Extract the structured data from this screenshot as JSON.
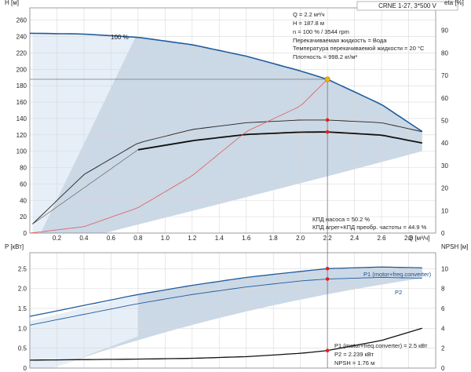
{
  "chart_data": [
    {
      "type": "line",
      "title": "CRNE 1-27, 3*500 V",
      "xlabel": "Q [м³/ч]",
      "ylabel_left": "H [м]",
      "ylabel_right": "eta [%]",
      "xticks": [
        "0",
        "0.2",
        "0.4",
        "0.6",
        "0.8",
        "1.0",
        "1.2",
        "1.4",
        "1.6",
        "1.8",
        "2.0",
        "2.2",
        "2.4",
        "2.6",
        "2.8"
      ],
      "yticks_left": [
        "0",
        "20",
        "40",
        "60",
        "80",
        "100",
        "120",
        "140",
        "160",
        "180",
        "200",
        "220",
        "240",
        "260"
      ],
      "yticks_right": [
        "0",
        "10",
        "20",
        "30",
        "40",
        "50",
        "60",
        "70",
        "80",
        "90"
      ],
      "xlim": [
        0,
        3.0
      ],
      "ylim_left": [
        0,
        275
      ],
      "ylim_right": [
        0,
        100
      ],
      "grid": true,
      "speed_label": "100 %",
      "series": [
        {
          "axis": "H",
          "x": [
            0,
            0.4,
            0.8,
            1.2,
            1.6,
            2.0,
            2.2,
            2.6,
            2.9
          ],
          "values": [
            244,
            243,
            239,
            230,
            216,
            198,
            187.8,
            157,
            124
          ]
        },
        {
          "axis": "eta",
          "x": [
            0.02,
            0.4,
            0.8,
            1.2,
            1.6,
            2.0,
            2.2,
            2.6,
            2.9
          ],
          "values": [
            4,
            26,
            40,
            46,
            49,
            50.2,
            50.2,
            49,
            45
          ]
        },
        {
          "axis": "eta",
          "x": [
            0.8,
            1.2,
            1.6,
            2.0,
            2.2,
            2.6,
            2.9
          ],
          "values": [
            37,
            41,
            43.8,
            44.8,
            44.9,
            43.5,
            40
          ]
        },
        {
          "axis": "H",
          "x": [
            0,
            0.4,
            0.8,
            1.2,
            1.6,
            2.0,
            2.2
          ],
          "values": [
            0,
            7.8,
            31,
            70,
            124,
            155,
            187.8
          ]
        }
      ],
      "duty_point": {
        "q": 2.2,
        "h": 187.8,
        "eta_pump": 50.2,
        "eta_total": 44.9
      },
      "info_lines": [
        "Q = 2.2 м³/ч",
        "H = 187.8 м",
        "n = 100 % / 3544 rpm",
        "Перекачиваемая жидкость = Вода",
        "Температура перекачиваемой жидкости = 20 °C",
        "Плотность = 998.2 кг/м³"
      ],
      "eff_lines": [
        "КПД насоса = 50.2 %",
        "КПД агрег+КПД преобр. частоты = 44.9 %"
      ]
    },
    {
      "type": "line",
      "xlabel": "",
      "ylabel_left": "P [кВт]",
      "ylabel_right": "NPSH [м]",
      "yticks_left": [
        "0",
        "0.5",
        "1.0",
        "1.5",
        "2.0",
        "2.5"
      ],
      "yticks_right": [
        "0",
        "2",
        "4",
        "6",
        "8",
        "10"
      ],
      "ylim_left": [
        0,
        2.9
      ],
      "ylim_right": [
        0,
        11.6
      ],
      "grid": true,
      "series": [
        {
          "name": "P1 (motor+freq.converter)",
          "axis": "P",
          "x": [
            0,
            0.8,
            1.2,
            1.6,
            2.0,
            2.2,
            2.6,
            2.9
          ],
          "values": [
            1.3,
            1.85,
            2.08,
            2.28,
            2.43,
            2.5,
            2.54,
            2.52
          ]
        },
        {
          "name": "P2",
          "axis": "P",
          "x": [
            0,
            0.8,
            1.2,
            1.6,
            2.0,
            2.2,
            2.6,
            2.9
          ],
          "values": [
            1.08,
            1.62,
            1.85,
            2.04,
            2.19,
            2.239,
            2.28,
            2.26
          ]
        },
        {
          "axis": "NPSH",
          "x": [
            0,
            0.8,
            1.2,
            1.6,
            2.0,
            2.2,
            2.6,
            2.9
          ],
          "values": [
            0.8,
            0.9,
            0.98,
            1.15,
            1.48,
            1.76,
            2.78,
            4.0
          ]
        }
      ],
      "info_lines": [
        "P1 (motor+freq.converter) = 2.5 кВт",
        "P2 = 2.239 кВт",
        "NPSH = 1.76 м"
      ]
    }
  ]
}
